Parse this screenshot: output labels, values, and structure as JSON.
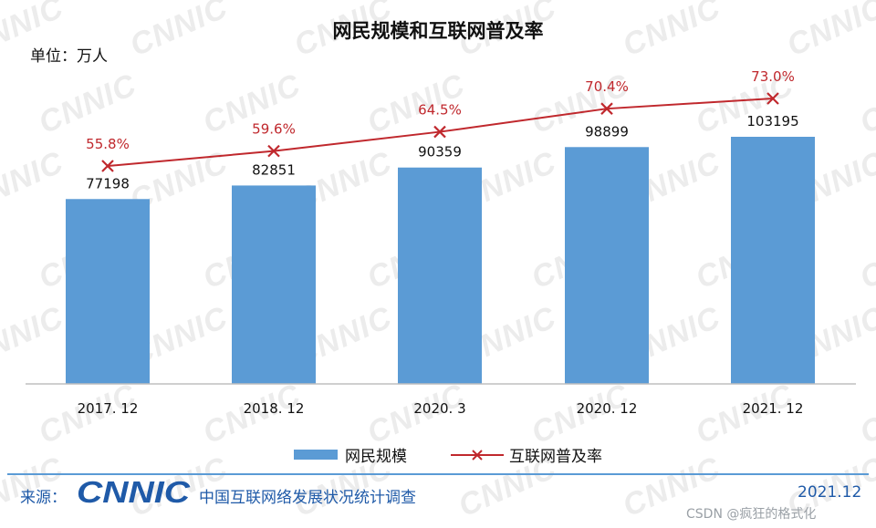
{
  "header": {
    "title": "网民规模和互联网普及率",
    "unit": "单位：万人"
  },
  "chart_data": {
    "type": "bar",
    "categories": [
      "2017. 12",
      "2018. 12",
      "2020. 3",
      "2020. 12",
      "2021. 12"
    ],
    "ylim": [
      0,
      130000
    ],
    "series": [
      {
        "name": "网民规模",
        "type": "bar",
        "color": "#5b9bd5",
        "values": [
          77198,
          82851,
          90359,
          98899,
          103195
        ]
      },
      {
        "name": "互联网普及率",
        "type": "line",
        "color": "#c0282d",
        "values": [
          55.8,
          59.6,
          64.5,
          70.4,
          73.0
        ],
        "labels": [
          "55.8%",
          "59.6%",
          "64.5%",
          "70.4%",
          "73.0%"
        ],
        "ylim": [
          0,
          100
        ]
      }
    ],
    "legend": "bottom",
    "grid": false
  },
  "footer": {
    "source_label": "来源：",
    "logo_text": "CNNIC",
    "org": "中国互联网络发展状况统计调查",
    "date": "2021.12"
  },
  "watermark": {
    "text": "CNNIC"
  },
  "credit": "CSDN @疯狂的格式化"
}
